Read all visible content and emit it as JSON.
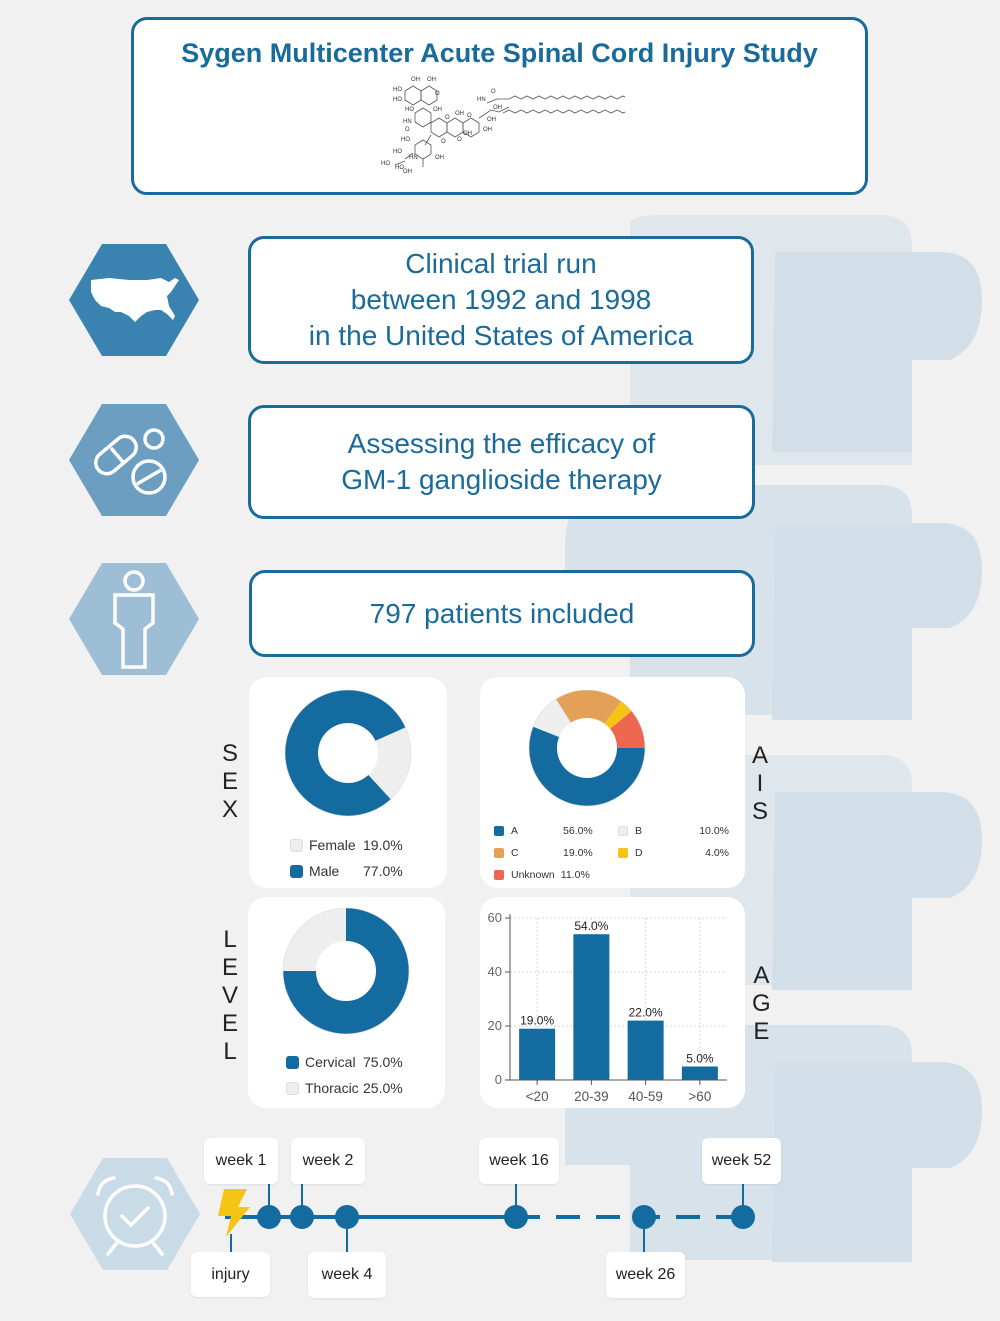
{
  "header": {
    "title": "Sygen Multicenter Acute Spinal Cord Injury Study"
  },
  "molecule": {
    "labels": [
      "OH",
      "OH",
      "HO",
      "HO",
      "O",
      "HO",
      "OH",
      "HN",
      "O",
      "OH",
      "O",
      "O",
      "OH",
      "HN",
      "OH",
      "HO",
      "O",
      "O",
      "HO",
      "OH",
      "OH",
      "HN",
      "HO",
      "HO",
      "OH",
      "O",
      "OH"
    ]
  },
  "info": [
    {
      "icon": "usa-map-icon",
      "text": "Clinical trial run\nbetween 1992 and 1998\nin the United States of America"
    },
    {
      "icon": "pills-icon",
      "text": "Assessing the efficacy of\nGM-1 ganglioside therapy"
    },
    {
      "icon": "person-icon",
      "text": "797 patients included"
    }
  ],
  "labels": {
    "sex": "SEX",
    "ais": "AIS",
    "level": "LEVEL",
    "age": "AGE"
  },
  "colors": {
    "primary": "#136b9f",
    "light": "#eeeeee",
    "orange": "#e5a058",
    "yellow": "#f4c514",
    "red": "#ec6650"
  },
  "chart_data": [
    {
      "type": "pie",
      "id": "sex",
      "labels": [
        "Female",
        "Male"
      ],
      "values": [
        19.0,
        77.0
      ],
      "value_labels": [
        "19.0%",
        "77.0%"
      ],
      "colors": [
        "#eeeeee",
        "#136b9f"
      ]
    },
    {
      "type": "pie",
      "id": "ais",
      "labels": [
        "A",
        "B",
        "C",
        "D",
        "Unknown"
      ],
      "values": [
        56.0,
        10.0,
        19.0,
        4.0,
        11.0
      ],
      "value_labels": [
        "56.0%",
        "10.0%",
        "19.0%",
        "4.0%",
        "11.0%"
      ],
      "colors": [
        "#136b9f",
        "#eeeeee",
        "#e5a058",
        "#f4c514",
        "#ec6650"
      ]
    },
    {
      "type": "pie",
      "id": "level",
      "labels": [
        "Cervical",
        "Thoracic"
      ],
      "values": [
        75.0,
        25.0
      ],
      "value_labels": [
        "75.0%",
        "25.0%"
      ],
      "colors": [
        "#136b9f",
        "#eeeeee"
      ]
    },
    {
      "type": "bar",
      "id": "age",
      "categories": [
        "<20",
        "20-39",
        "40-59",
        ">60"
      ],
      "values": [
        19.0,
        54.0,
        22.0,
        5.0
      ],
      "value_labels": [
        "19.0%",
        "54.0%",
        "22.0%",
        "5.0%"
      ],
      "yticks": [
        "0",
        "20",
        "40",
        "60"
      ],
      "ylim": [
        0,
        60
      ],
      "grid": true
    }
  ],
  "timeline": {
    "start": "injury",
    "weeks": [
      {
        "label": "week 1",
        "week": 1
      },
      {
        "label": "week 2",
        "week": 2
      },
      {
        "label": "week 4",
        "week": 4
      },
      {
        "label": "week 16",
        "week": 16
      },
      {
        "label": "week 26",
        "week": 26
      },
      {
        "label": "week 52",
        "week": 52
      }
    ]
  }
}
